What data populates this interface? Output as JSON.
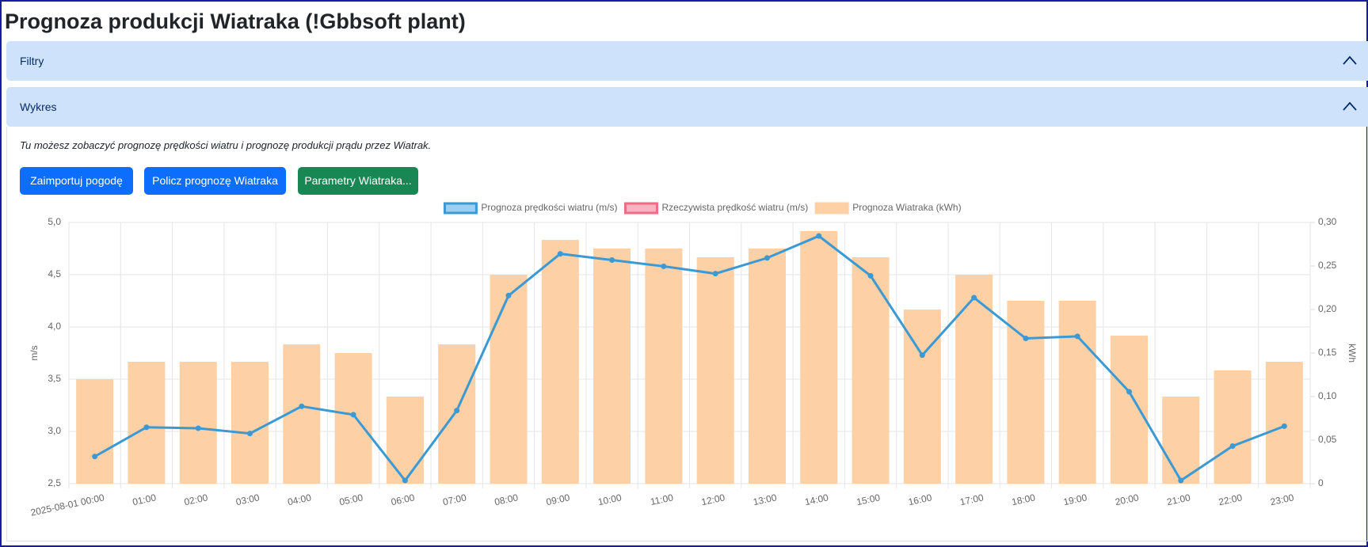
{
  "page": {
    "title": "Prognoza produkcji Wiatraka (!Gbbsoft plant)"
  },
  "accordion": [
    {
      "label": "Filtry"
    },
    {
      "label": "Wykres"
    }
  ],
  "description": "Tu możesz zobaczyć prognozę prędkości wiatru i prognozę produkcji prądu przez Wiatrak.",
  "buttons": [
    {
      "label": "Zaimportuj pogodę",
      "color": "#0d6efd"
    },
    {
      "label": "Policz prognozę Wiatraka",
      "color": "#0d6efd"
    },
    {
      "label": "Parametry Wiatraka...",
      "color": "#198754"
    }
  ],
  "chart_data": {
    "type": "bar",
    "categories": [
      "2025-08-01 00:00",
      "01:00",
      "02:00",
      "03:00",
      "04:00",
      "05:00",
      "06:00",
      "07:00",
      "08:00",
      "09:00",
      "10:00",
      "11:00",
      "12:00",
      "13:00",
      "14:00",
      "15:00",
      "16:00",
      "17:00",
      "18:00",
      "19:00",
      "20:00",
      "21:00",
      "22:00",
      "23:00"
    ],
    "series": [
      {
        "name": "Prognoza prędkości wiatru (m/s)",
        "type": "line",
        "axis": "y",
        "color": "#3b99d4",
        "legend_fill": "#9ccff2",
        "values": [
          2.76,
          3.04,
          3.03,
          2.98,
          3.24,
          3.16,
          2.53,
          3.2,
          4.3,
          4.7,
          4.64,
          4.58,
          4.51,
          4.66,
          4.87,
          4.49,
          3.73,
          4.28,
          3.89,
          3.91,
          3.38,
          2.53,
          2.86,
          3.05
        ]
      },
      {
        "name": "Rzeczywista prędkość wiatru (m/s)",
        "type": "line",
        "axis": "y",
        "color": "#ef6b86",
        "legend_fill": "#f8b3c2",
        "values": [
          null,
          null,
          null,
          null,
          null,
          null,
          null,
          null,
          null,
          null,
          null,
          null,
          null,
          null,
          null,
          null,
          null,
          null,
          null,
          null,
          null,
          null,
          null,
          null
        ]
      },
      {
        "name": "Prognoza Wiatraka (kWh)",
        "type": "bar",
        "axis": "y2",
        "color": "#fdd0a6",
        "legend_fill": "#fdd0a6",
        "values": [
          0.12,
          0.14,
          0.14,
          0.14,
          0.16,
          0.15,
          0.1,
          0.16,
          0.24,
          0.28,
          0.27,
          0.27,
          0.26,
          0.27,
          0.29,
          0.26,
          0.2,
          0.24,
          0.21,
          0.21,
          0.17,
          0.1,
          0.13,
          0.14
        ]
      }
    ],
    "ylabel": "m/s",
    "y2label": "kWh",
    "ylim": [
      2.5,
      5.0
    ],
    "yticks": [
      {
        "value": 2.5,
        "label": "2,5"
      },
      {
        "value": 3.0,
        "label": "3,0"
      },
      {
        "value": 3.5,
        "label": "3,5"
      },
      {
        "value": 4.0,
        "label": "4,0"
      },
      {
        "value": 4.5,
        "label": "4,5"
      },
      {
        "value": 5.0,
        "label": "5,0"
      }
    ],
    "y2lim": [
      0,
      0.3
    ],
    "y2ticks": [
      0,
      {
        "value": 0.05,
        "label": "0,05"
      },
      {
        "value": 0.1,
        "label": "0,10"
      },
      {
        "value": 0.15,
        "label": "0,15"
      },
      {
        "value": 0.2,
        "label": "0,20"
      },
      {
        "value": 0.25,
        "label": "0,25"
      },
      {
        "value": 0.3,
        "label": "0,30"
      }
    ],
    "grid": true,
    "legend": "top"
  }
}
